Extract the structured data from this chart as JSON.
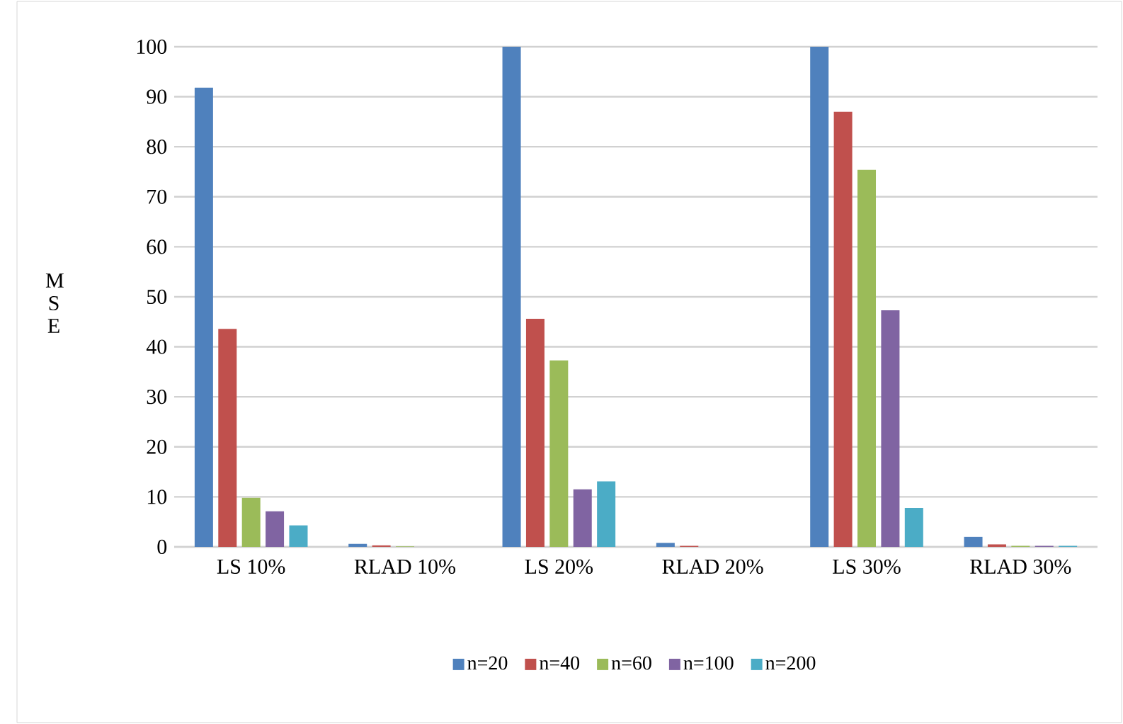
{
  "chart_data": {
    "type": "bar",
    "ylabel": "M S E",
    "categories": [
      "LS 10%",
      "RLAD 10%",
      "LS 20%",
      "RLAD 20%",
      "LS 30%",
      "RLAD 30%"
    ],
    "series": [
      {
        "name": "n=20",
        "color": "#4f81bd",
        "values": [
          91.8,
          0.6,
          100,
          0.8,
          100,
          2.0
        ]
      },
      {
        "name": "n=40",
        "color": "#c0504d",
        "values": [
          43.6,
          0.3,
          45.6,
          0.2,
          87.0,
          0.5
        ]
      },
      {
        "name": "n=60",
        "color": "#9bbb59",
        "values": [
          9.8,
          0.1,
          37.3,
          0.0,
          75.4,
          0.2
        ]
      },
      {
        "name": "n=100",
        "color": "#8064a2",
        "values": [
          7.1,
          0.0,
          11.5,
          0.0,
          47.3,
          0.2
        ]
      },
      {
        "name": "n=200",
        "color": "#4bacc6",
        "values": [
          4.3,
          0.0,
          13.1,
          0.0,
          7.8,
          0.2
        ]
      }
    ],
    "ylim": [
      0,
      100
    ],
    "yticks": [
      0,
      10,
      20,
      30,
      40,
      50,
      60,
      70,
      80,
      90,
      100
    ],
    "grid": "y",
    "legend": "bottom"
  }
}
